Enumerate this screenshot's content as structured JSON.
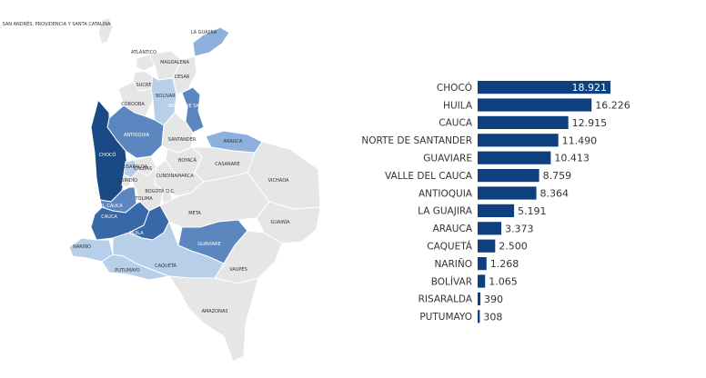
{
  "chart_data": [
    {
      "type": "map",
      "title": "",
      "regions": [
        {
          "name": "LA GUAJIRA",
          "level": 2
        },
        {
          "name": "ATLÁNTICO",
          "level": 0
        },
        {
          "name": "MAGDALENA",
          "level": 0
        },
        {
          "name": "CESAR",
          "level": 0
        },
        {
          "name": "SUCRE",
          "level": 0
        },
        {
          "name": "BOLÍVAR",
          "level": 1
        },
        {
          "name": "CÓRDOBA",
          "level": 0
        },
        {
          "name": "NORTE DE SANTANDER",
          "level": 3
        },
        {
          "name": "ANTIOQUIA",
          "level": 3
        },
        {
          "name": "SANTANDER",
          "level": 0
        },
        {
          "name": "ARAUCA",
          "level": 2
        },
        {
          "name": "CHOCÓ",
          "level": 5
        },
        {
          "name": "RISARALDA",
          "level": 1
        },
        {
          "name": "CALDAS",
          "level": 0
        },
        {
          "name": "BOYACÁ",
          "level": 0
        },
        {
          "name": "CASANARE",
          "level": 0
        },
        {
          "name": "CUNDINAMARCA",
          "level": 0
        },
        {
          "name": "BOGOTÁ D.C.",
          "level": 0
        },
        {
          "name": "QUINDÍO",
          "level": 0
        },
        {
          "name": "TOLIMA",
          "level": 0
        },
        {
          "name": "VICHADA",
          "level": 0
        },
        {
          "name": "META",
          "level": 0
        },
        {
          "name": "VALLE DEL CAUCA",
          "level": 3
        },
        {
          "name": "CAUCA",
          "level": 4
        },
        {
          "name": "HUILA",
          "level": 4
        },
        {
          "name": "GUAINÍA",
          "level": 0
        },
        {
          "name": "NARIÑO",
          "level": 1
        },
        {
          "name": "GUAVIARE",
          "level": 3
        },
        {
          "name": "PUTUMAYO",
          "level": 1
        },
        {
          "name": "CAQUETÁ",
          "level": 1
        },
        {
          "name": "VAUPÉS",
          "level": 0
        },
        {
          "name": "AMAZONAS",
          "level": 0
        },
        {
          "name": "SAN ANDRÉS, PROVIDENCIA Y SANTA CATALINA",
          "level": 0
        }
      ],
      "colors": {
        "0": "#e6e6e6",
        "1": "#b8cfe9",
        "2": "#8db0dc",
        "3": "#5b86c0",
        "4": "#3769a8",
        "5": "#1a4a86"
      }
    },
    {
      "type": "bar",
      "orientation": "horizontal",
      "categories": [
        "CHOCÓ",
        "HUILA",
        "CAUCA",
        "NORTE DE SANTANDER",
        "GUAVIARE",
        "VALLE DEL CAUCA",
        "ANTIOQUIA",
        "LA GUAJIRA",
        "ARAUCA",
        "CAQUETÁ",
        "NARIÑO",
        "BOLÍVAR",
        "RISARALDA",
        "PUTUMAYO"
      ],
      "values": [
        18921,
        16226,
        12915,
        11490,
        10413,
        8759,
        8364,
        5191,
        3373,
        2500,
        1268,
        1065,
        390,
        308
      ],
      "value_labels": [
        "18.921",
        "16.226",
        "12.915",
        "11.490",
        "10.413",
        "8.759",
        "8.364",
        "5.191",
        "3.373",
        "2.500",
        "1.268",
        "1.065",
        "390",
        "308"
      ],
      "title": "",
      "xlabel": "",
      "ylabel": "",
      "xlim": [
        0,
        18921
      ],
      "grid": false,
      "color": "#0e3f7f"
    }
  ]
}
